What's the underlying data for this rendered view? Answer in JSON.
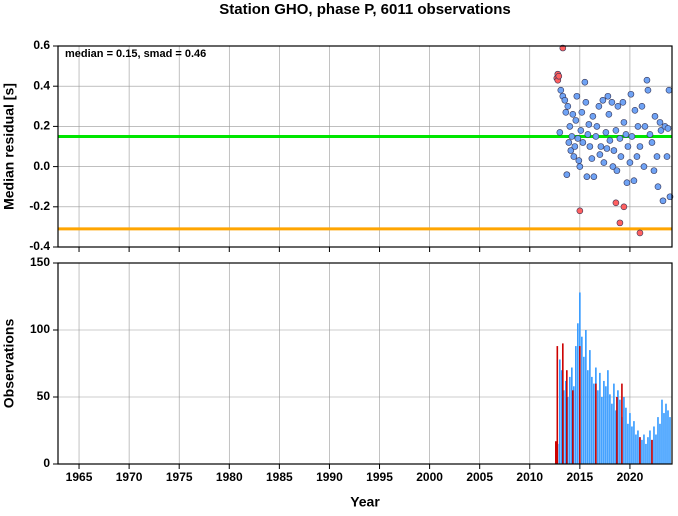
{
  "title": "Station GHO, phase P, 6011 observations",
  "chart_data": [
    {
      "type": "scatter",
      "ylabel": "Median residual [s]",
      "annotation": "median = 0.15, smad = 0.46",
      "xlim": [
        1962.9,
        2024.2
      ],
      "xticks": [
        1965,
        1970,
        1975,
        1980,
        1985,
        1990,
        1995,
        2000,
        2005,
        2010,
        2015,
        2020
      ],
      "ylim": [
        -0.4,
        0.6
      ],
      "yticks": [
        -0.4,
        -0.2,
        {
          "value": 0,
          "label": "0.0"
        },
        0.2,
        0.4,
        0.6
      ],
      "grid": true,
      "hlines": [
        {
          "value": 0.15,
          "color": "#00e600"
        },
        {
          "value": -0.31,
          "color": "#ffa500"
        }
      ],
      "series": [
        {
          "color": "#6fa3f5",
          "x": [
            2013.0,
            2013.1,
            2013.3,
            2013.5,
            2013.6,
            2013.7,
            2013.8,
            2013.9,
            2014.0,
            2014.1,
            2014.2,
            2014.3,
            2014.4,
            2014.5,
            2014.6,
            2014.7,
            2014.8,
            2014.9,
            2015.0,
            2015.1,
            2015.2,
            2015.3,
            2015.5,
            2015.6,
            2015.7,
            2015.8,
            2015.9,
            2016.0,
            2016.2,
            2016.3,
            2016.4,
            2016.6,
            2016.7,
            2016.9,
            2017.0,
            2017.1,
            2017.3,
            2017.4,
            2017.6,
            2017.7,
            2017.8,
            2017.9,
            2018.0,
            2018.2,
            2018.3,
            2018.4,
            2018.6,
            2018.7,
            2018.8,
            2019.0,
            2019.1,
            2019.3,
            2019.4,
            2019.6,
            2019.7,
            2019.8,
            2020.0,
            2020.1,
            2020.2,
            2020.4,
            2020.5,
            2020.7,
            2020.8,
            2021.0,
            2021.2,
            2021.4,
            2021.5,
            2021.7,
            2021.8,
            2022.0,
            2022.2,
            2022.4,
            2022.5,
            2022.7,
            2022.8,
            2023.0,
            2023.1,
            2023.3,
            2023.5,
            2023.7,
            2023.9,
            2024.0,
            2023.8
          ],
          "values": [
            0.17,
            0.38,
            0.35,
            0.33,
            0.27,
            -0.04,
            0.3,
            0.12,
            0.2,
            0.08,
            0.15,
            0.26,
            0.05,
            0.1,
            0.23,
            0.35,
            0.14,
            0.03,
            0.0,
            0.18,
            0.27,
            0.12,
            0.42,
            0.32,
            -0.05,
            0.16,
            0.21,
            0.1,
            0.04,
            0.25,
            -0.05,
            0.15,
            0.2,
            0.3,
            0.06,
            0.1,
            0.33,
            0.02,
            0.17,
            0.09,
            0.35,
            0.26,
            0.13,
            0.32,
            0.0,
            0.08,
            0.18,
            -0.02,
            0.3,
            0.14,
            0.05,
            0.32,
            0.22,
            0.16,
            -0.08,
            0.1,
            0.02,
            0.36,
            0.15,
            -0.07,
            0.28,
            0.05,
            0.2,
            0.1,
            0.3,
            0.0,
            0.2,
            0.43,
            0.38,
            0.16,
            0.12,
            -0.02,
            0.25,
            0.05,
            -0.1,
            0.22,
            0.18,
            -0.17,
            0.2,
            0.05,
            0.38,
            -0.15,
            0.19
          ]
        },
        {
          "color": "#ff6060",
          "x": [
            2012.7,
            2012.8,
            2012.8,
            2012.9,
            2013.3,
            2015.0,
            2018.6,
            2019.0,
            2019.4,
            2021.0
          ],
          "values": [
            0.44,
            0.46,
            0.43,
            0.45,
            0.59,
            -0.22,
            -0.18,
            -0.28,
            -0.2,
            -0.33
          ]
        }
      ]
    },
    {
      "type": "bar",
      "xlabel": "Year",
      "ylabel": "Observations",
      "xlim": [
        1962.9,
        2024.2
      ],
      "xticks": [
        1965,
        1970,
        1975,
        1980,
        1985,
        1990,
        1995,
        2000,
        2005,
        2010,
        2015,
        2020
      ],
      "ylim": [
        0,
        150
      ],
      "yticks": [
        0,
        50,
        100,
        150
      ],
      "grid": true,
      "series": [
        {
          "color": "#3399ff",
          "x": [
            2012.8,
            2013,
            2013.2,
            2013.4,
            2013.6,
            2013.8,
            2014,
            2014.2,
            2014.4,
            2014.6,
            2014.8,
            2015,
            2015.2,
            2015.4,
            2015.6,
            2015.8,
            2016,
            2016.2,
            2016.4,
            2016.6,
            2016.8,
            2017,
            2017.2,
            2017.4,
            2017.6,
            2017.8,
            2018,
            2018.2,
            2018.4,
            2018.6,
            2018.8,
            2019,
            2019.2,
            2019.4,
            2019.6,
            2019.8,
            2020,
            2020.2,
            2020.4,
            2020.6,
            2020.8,
            2021,
            2021.2,
            2021.4,
            2021.6,
            2021.8,
            2022,
            2022.2,
            2022.4,
            2022.6,
            2022.8,
            2023,
            2023.2,
            2023.4,
            2023.6,
            2023.8,
            2024
          ],
          "values": [
            15,
            78,
            70,
            55,
            62,
            50,
            65,
            72,
            58,
            88,
            105,
            128,
            95,
            80,
            100,
            70,
            85,
            65,
            60,
            72,
            55,
            68,
            50,
            62,
            58,
            70,
            52,
            45,
            60,
            40,
            55,
            48,
            35,
            50,
            42,
            30,
            38,
            28,
            32,
            22,
            25,
            20,
            18,
            22,
            15,
            20,
            25,
            18,
            28,
            22,
            35,
            30,
            48,
            38,
            45,
            40,
            35
          ]
        },
        {
          "color": "#cc0000",
          "x": [
            2012.6,
            2012.75,
            2013.3,
            2013.7,
            2014.3,
            2015.0,
            2016.6,
            2018.7,
            2019.2,
            2021.0,
            2022.2
          ],
          "values": [
            17,
            88,
            90,
            70,
            55,
            88,
            60,
            50,
            60,
            20,
            18
          ]
        }
      ]
    }
  ]
}
